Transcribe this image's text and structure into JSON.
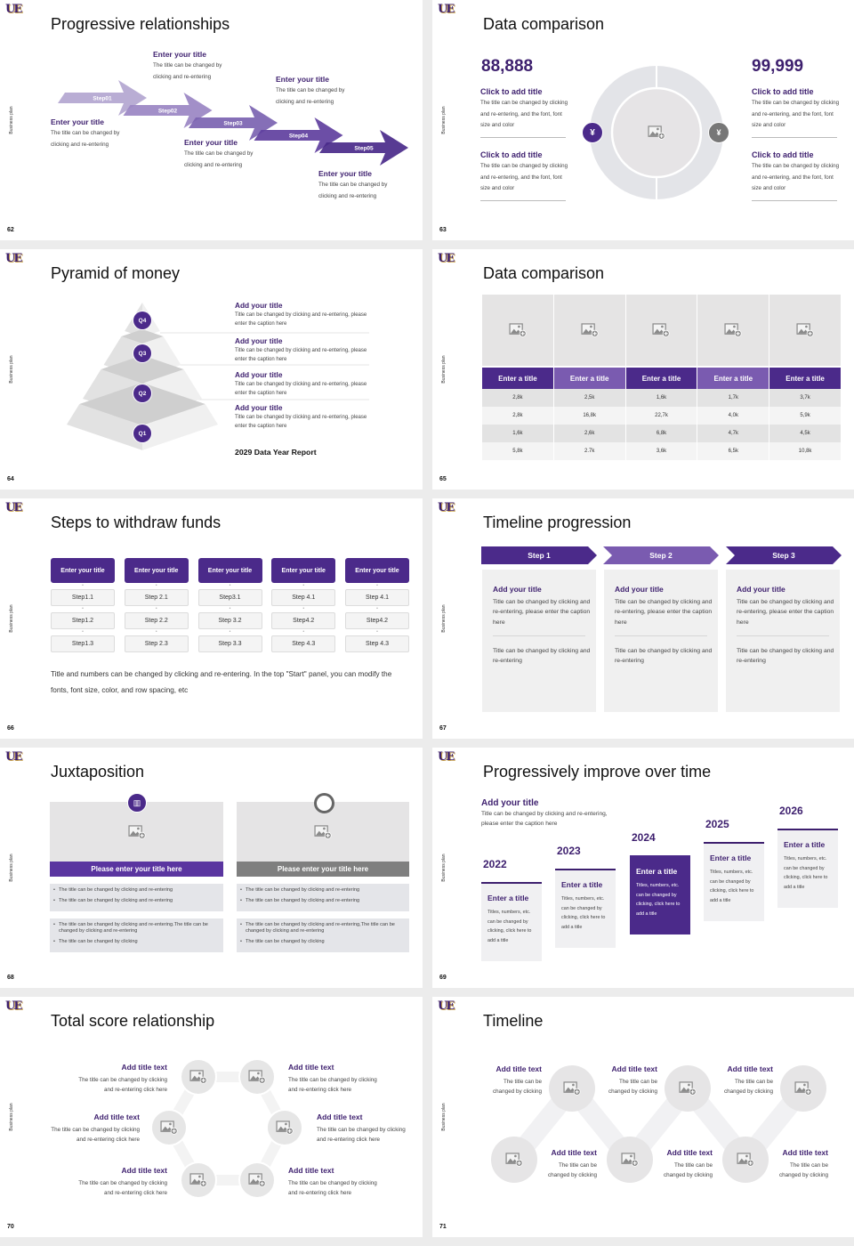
{
  "brand": {
    "logo": "UE",
    "side_label": "Business plan",
    "accent": "#4b2a8a",
    "accent_light": "#7a5bb0",
    "neutral": "#7f7f7f"
  },
  "s62": {
    "page": "62",
    "title": "Progressive relationships",
    "steps": [
      "Step01",
      "Step02",
      "Step03",
      "Step04",
      "Step05"
    ],
    "colors": [
      "#b3a6d0",
      "#9a86c3",
      "#7b63b1",
      "#5f3f9e",
      "#4a2a8a"
    ],
    "items": [
      {
        "title": "Enter your title",
        "body": "The title can be changed by clicking and re-entering"
      },
      {
        "title": "Enter your title",
        "body": "The title can be changed by clicking and re-entering"
      },
      {
        "title": "Enter your title",
        "body": "The title can be changed by clicking and re-entering"
      },
      {
        "title": "Enter your title",
        "body": "The title can be changed by clicking and re-entering"
      },
      {
        "title": "Enter your title",
        "body": "The title can be changed by clicking and re-entering"
      }
    ]
  },
  "s63": {
    "page": "63",
    "title": "Data comparison",
    "left": {
      "value": "88,888",
      "icon": "yen-hand-icon",
      "items": [
        {
          "title": "Click to add title",
          "body": "The title can be changed by clicking and re-entering, and the font, font size and color"
        },
        {
          "title": "Click to add title",
          "body": "The title can be changed by clicking and re-entering, and the font, font size and color"
        }
      ]
    },
    "right": {
      "value": "99,999",
      "icon": "money-bag-icon",
      "items": [
        {
          "title": "Click to add title",
          "body": "The title can be changed by clicking and re-entering, and the font, font size and color"
        },
        {
          "title": "Click to add title",
          "body": "The title can be changed by clicking and re-entering, and the font, font size and color"
        }
      ]
    }
  },
  "s64": {
    "page": "64",
    "title": "Pyramid of money",
    "levels": [
      "Q4",
      "Q3",
      "Q2",
      "Q1"
    ],
    "items": [
      {
        "title": "Add your title",
        "body": "Title can be changed by clicking and re-entering, please enter the caption here"
      },
      {
        "title": "Add your title",
        "body": "Title can be changed by clicking and re-entering, please enter the caption here"
      },
      {
        "title": "Add your title",
        "body": "Title can be changed by clicking and re-entering, please enter the caption here"
      },
      {
        "title": "Add your title",
        "body": "Title can be changed by clicking and re-entering, please enter the caption here"
      }
    ],
    "report": "2029 Data Year Report"
  },
  "s65": {
    "page": "65",
    "title": "Data comparison",
    "headers": [
      "Enter a title",
      "Enter a title",
      "Enter a title",
      "Enter a title",
      "Enter a title"
    ],
    "rows": [
      [
        "2,8k",
        "2,5k",
        "1,6k",
        "1,7k",
        "3,7k"
      ],
      [
        "2,8k",
        "16,8k",
        "22,7k",
        "4,0k",
        "5,9k"
      ],
      [
        "1,6k",
        "2,6k",
        "6,8k",
        "4,7k",
        "4,5k"
      ],
      [
        "5,8k",
        "2.7k",
        "3,6k",
        "6,5k",
        "10,8k"
      ]
    ]
  },
  "s66": {
    "page": "66",
    "title": "Steps to withdraw funds",
    "columns": [
      {
        "header": "Enter your title",
        "steps": [
          "Step1.1",
          "Step1.2",
          "Step1.3"
        ]
      },
      {
        "header": "Enter your title",
        "steps": [
          "Step 2.1",
          "Step 2.2",
          "Step 2.3"
        ]
      },
      {
        "header": "Enter your title",
        "steps": [
          "Step3.1",
          "Step 3.2",
          "Step 3.3"
        ]
      },
      {
        "header": "Enter your title",
        "steps": [
          "Step 4.1",
          "Step4.2",
          "Step 4.3"
        ]
      },
      {
        "header": "Enter your title",
        "steps": [
          "Step 4.1",
          "Step4.2",
          "Step 4.3"
        ]
      }
    ],
    "note": "Title and numbers can be changed by clicking and re-entering. In the top \"Start\" panel, you can modify the fonts, font size, color, and row spacing, etc"
  },
  "s67": {
    "page": "67",
    "title": "Timeline progression",
    "steps": [
      {
        "label": "Step 1",
        "title": "Add your title",
        "body": "Title can be changed by clicking and re-entering, please enter the caption here",
        "sub": "Title can be changed by clicking and re-entering"
      },
      {
        "label": "Step 2",
        "title": "Add your title",
        "body": "Title can be changed by clicking and re-entering, please enter the caption here",
        "sub": "Title can be changed by clicking and re-entering"
      },
      {
        "label": "Step 3",
        "title": "Add your title",
        "body": "Title can be changed by clicking and re-entering, please enter the caption here",
        "sub": "Title can be changed by clicking and re-entering"
      }
    ]
  },
  "s68": {
    "page": "68",
    "title": "Juxtaposition",
    "panels": [
      {
        "icon": "bar-chart-icon",
        "title": "Please enter your title here",
        "box1": [
          "The title can be changed by clicking and re-entering",
          "The title can be changed by clicking and re-entering"
        ],
        "box2": [
          "The title can be changed by clicking and re-entering.The title can be changed by clicking and re-entering",
          "The title can be changed by clicking"
        ]
      },
      {
        "icon": "pie-chart-icon",
        "title": "Please enter your title here",
        "box1": [
          "The title can be changed by clicking and re-entering",
          "The title can be changed by clicking and re-entering"
        ],
        "box2": [
          "The title can be changed by clicking and re-entering,The title can be changed by clicking and re-entering",
          "The title can be changed by clicking"
        ]
      }
    ]
  },
  "s69": {
    "page": "69",
    "title": "Progressively improve over time",
    "head": {
      "title": "Add your title",
      "body": "Title can be changed by clicking and re-entering, please enter the caption here"
    },
    "years": [
      {
        "year": "2022",
        "title": "Enter a title",
        "body": "Titles, numbers, etc. can be changed by clicking, click here to add a title"
      },
      {
        "year": "2023",
        "title": "Enter a title",
        "body": "Titles, numbers, etc. can be changed by clicking, click here to add a title"
      },
      {
        "year": "2024",
        "title": "Enter a title",
        "body": "Titles, numbers, etc. can be changed by clicking, click here to add a title"
      },
      {
        "year": "2025",
        "title": "Enter a title",
        "body": "Titles, numbers, etc. can be changed by clicking, click here to add a title"
      },
      {
        "year": "2026",
        "title": "Enter a title",
        "body": "Titles, numbers, etc. can be changed by clicking, click here to add a title"
      }
    ]
  },
  "s70": {
    "page": "70",
    "title": "Total score relationship",
    "items": [
      {
        "title": "Add title text",
        "body": "The title can be changed by clicking and re-entering click here"
      },
      {
        "title": "Add title text",
        "body": "The title can be changed by clicking and re-entering click here"
      },
      {
        "title": "Add title text",
        "body": "The title can be changed by clicking and re-entering click here"
      },
      {
        "title": "Add title text",
        "body": "The title can be changed by clicking and re-entering click here"
      },
      {
        "title": "Add title text",
        "body": "The title can be changed by clicking and re-entering click here"
      },
      {
        "title": "Add title text",
        "body": "The title can be changed by clicking and re-entering click here"
      }
    ]
  },
  "s71": {
    "page": "71",
    "title": "Timeline",
    "items": [
      {
        "title": "Add title text",
        "body": "The title can be changed by clicking"
      },
      {
        "title": "Add title text",
        "body": "The title can be changed by clicking"
      },
      {
        "title": "Add title text",
        "body": "The title can be changed by clicking"
      },
      {
        "title": "Add title text",
        "body": "The title can be changed by clicking"
      },
      {
        "title": "Add title text",
        "body": "The title can be changed by clicking"
      },
      {
        "title": "Add title text",
        "body": "The title can be changed by clicking"
      }
    ]
  }
}
